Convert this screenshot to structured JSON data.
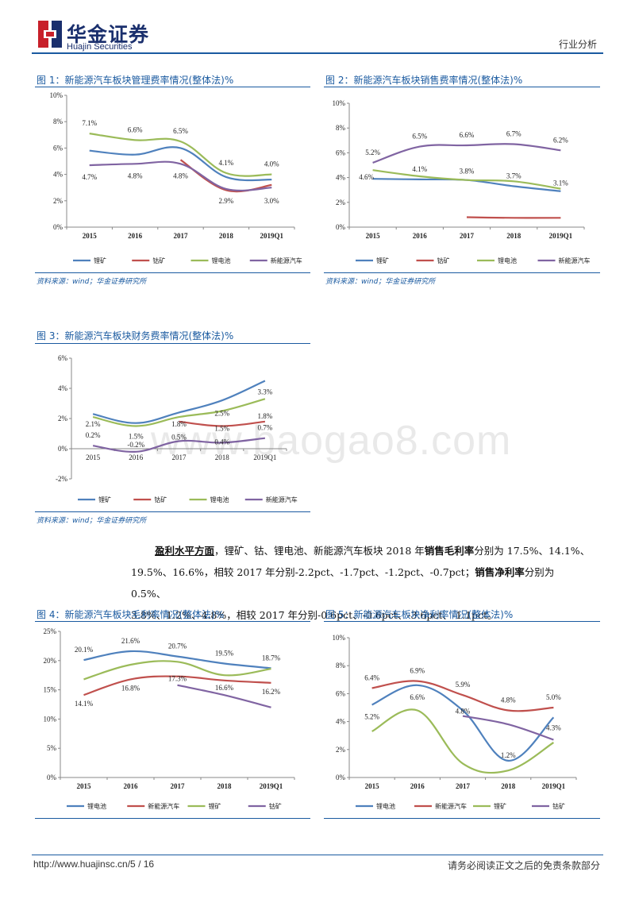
{
  "header": {
    "brand_cn": "华金证券",
    "brand_en": "Huajin Securities",
    "section": "行业分析"
  },
  "watermark": "www.baogao8.com",
  "figures": [
    {
      "title": "图 1：新能源汽车板块管理费率情况(整体法)%",
      "source": "资料来源：wind；华金证券研究所"
    },
    {
      "title": "图 2：新能源汽车板块销售费率情况(整体法)%",
      "source": "资料来源：wind；华金证券研究所"
    },
    {
      "title": "图 3：新能源汽车板块财务费率情况(整体法)%",
      "source": "资料来源：wind；华金证券研究所"
    },
    {
      "title": "图 4：新能源汽车板块毛利率情况(整体法)%",
      "source": ""
    },
    {
      "title": "图 5：新能源汽车板块净利率情况(整体法)%",
      "source": ""
    }
  ],
  "paragraph": {
    "lead": "盈利水平方面",
    "p1": "，锂矿、钴、锂电池、新能源汽车板块 2018 年",
    "k1": "销售毛利率",
    "p2": "分别为 17.5%、14.1%、",
    "p3": "19.5%、16.6%，相较 2017 年分别-2.2pct、-1.7pct、-1.2pct、-0.7pct；",
    "k2": "销售净利率",
    "p4": "分别为 0.5%、",
    "p5": "3.8%、1.2%、4.8%，相较 2017 年分别-0.6pct、-0.6pct、-3.6pct、-1.1pct。"
  },
  "footer": {
    "url": "http://www.huajinsc.cn/5 / 16",
    "disclaimer": "请务必阅读正文之后的免责条款部分"
  },
  "colors": {
    "blue": "#4f81bd",
    "red": "#c0504d",
    "green": "#9bbb59",
    "purple": "#8064a2"
  },
  "chart_data": [
    {
      "type": "line",
      "categories": [
        "2015",
        "2016",
        "2017",
        "2018",
        "2019Q1"
      ],
      "y_ticks": [
        "0%",
        "2%",
        "4%",
        "6%",
        "8%",
        "10%"
      ],
      "ylim": [
        0,
        10
      ],
      "legend_position": "bottom",
      "series": [
        {
          "name": "锂矿",
          "color": "#4f81bd",
          "values": [
            5.8,
            5.5,
            6.0,
            3.8,
            3.6
          ]
        },
        {
          "name": "钴矿",
          "color": "#c0504d",
          "values": [
            null,
            null,
            5.1,
            2.8,
            3.2
          ]
        },
        {
          "name": "锂电池",
          "color": "#9bbb59",
          "values": [
            7.1,
            6.6,
            6.5,
            4.1,
            4.0
          ]
        },
        {
          "name": "新能源汽车",
          "color": "#8064a2",
          "values": [
            4.7,
            4.8,
            4.8,
            2.9,
            3.0
          ]
        }
      ],
      "labels": [
        {
          "text": "7.1%",
          "cat": 0,
          "v": 7.1,
          "dy": -10
        },
        {
          "text": "6.6%",
          "cat": 1,
          "v": 6.6,
          "dy": -10
        },
        {
          "text": "6.5%",
          "cat": 2,
          "v": 6.5,
          "dy": -10
        },
        {
          "text": "4.1%",
          "cat": 3,
          "v": 4.1,
          "dy": -10
        },
        {
          "text": "4.0%",
          "cat": 4,
          "v": 4.0,
          "dy": -10
        },
        {
          "text": "4.7%",
          "cat": 0,
          "v": 4.7,
          "dy": 18
        },
        {
          "text": "4.8%",
          "cat": 1,
          "v": 4.8,
          "dy": 18
        },
        {
          "text": "4.8%",
          "cat": 2,
          "v": 4.8,
          "dy": 18
        },
        {
          "text": "2.9%",
          "cat": 3,
          "v": 2.9,
          "dy": 18
        },
        {
          "text": "3.0%",
          "cat": 4,
          "v": 3.0,
          "dy": 20
        }
      ]
    },
    {
      "type": "line",
      "categories": [
        "2015",
        "2016",
        "2017",
        "2018",
        "2019Q1"
      ],
      "y_ticks": [
        "0%",
        "2%",
        "4%",
        "6%",
        "8%",
        "10%"
      ],
      "ylim": [
        0,
        10
      ],
      "legend_position": "bottom",
      "series": [
        {
          "name": "锂矿",
          "color": "#4f81bd",
          "values": [
            3.9,
            3.85,
            3.8,
            3.3,
            2.9
          ]
        },
        {
          "name": "钴矿",
          "color": "#c0504d",
          "values": [
            null,
            null,
            0.8,
            0.75,
            0.75
          ]
        },
        {
          "name": "锂电池",
          "color": "#9bbb59",
          "values": [
            4.6,
            4.1,
            3.8,
            3.7,
            3.1
          ]
        },
        {
          "name": "新能源汽车",
          "color": "#8064a2",
          "values": [
            5.2,
            6.5,
            6.6,
            6.7,
            6.2
          ]
        }
      ],
      "labels": [
        {
          "text": "5.2%",
          "cat": 0,
          "v": 5.2,
          "dy": -10
        },
        {
          "text": "6.5%",
          "cat": 1,
          "v": 6.5,
          "dy": -10
        },
        {
          "text": "6.6%",
          "cat": 2,
          "v": 6.6,
          "dy": -10
        },
        {
          "text": "6.7%",
          "cat": 3,
          "v": 6.7,
          "dy": -10
        },
        {
          "text": "6.2%",
          "cat": 4,
          "v": 6.2,
          "dy": -10
        },
        {
          "text": "4.6%",
          "cat": 0,
          "v": 4.6,
          "dy": 12,
          "dx": -8
        },
        {
          "text": "4.1%",
          "cat": 1,
          "v": 4.1,
          "dy": -6
        },
        {
          "text": "3.8%",
          "cat": 2,
          "v": 3.8,
          "dy": -8
        },
        {
          "text": "3.7%",
          "cat": 3,
          "v": 3.7,
          "dy": -4
        },
        {
          "text": "3.1%",
          "cat": 4,
          "v": 3.1,
          "dy": -4
        }
      ]
    },
    {
      "type": "line",
      "categories": [
        "2015",
        "2016",
        "2017",
        "2018",
        "2019Q1"
      ],
      "y_ticks": [
        "-2%",
        "0%",
        "2%",
        "4%",
        "6%"
      ],
      "ylim": [
        -2,
        6
      ],
      "legend_position": "bottom",
      "series": [
        {
          "name": "锂矿",
          "color": "#4f81bd",
          "values": [
            2.3,
            1.7,
            2.4,
            3.2,
            4.5
          ]
        },
        {
          "name": "钴矿",
          "color": "#c0504d",
          "values": [
            null,
            null,
            1.8,
            1.5,
            1.8
          ]
        },
        {
          "name": "锂电池",
          "color": "#9bbb59",
          "values": [
            2.1,
            1.5,
            2.1,
            2.5,
            3.3
          ]
        },
        {
          "name": "新能源汽车",
          "color": "#8064a2",
          "values": [
            0.2,
            -0.2,
            0.5,
            0.4,
            0.7
          ]
        }
      ],
      "labels": [
        {
          "text": "2.1%",
          "cat": 0,
          "v": 2.1,
          "dy": 12
        },
        {
          "text": "1.5%",
          "cat": 1,
          "v": 1.5,
          "dy": 16
        },
        {
          "text": "1.8%",
          "cat": 2,
          "v": 1.8,
          "dy": 6
        },
        {
          "text": "2.5%",
          "cat": 3,
          "v": 2.5,
          "dy": 6
        },
        {
          "text": "3.3%",
          "cat": 4,
          "v": 3.3,
          "dy": -6
        },
        {
          "text": "1.5%",
          "cat": 3,
          "v": 1.5,
          "dy": 6
        },
        {
          "text": "1.8%",
          "cat": 4,
          "v": 1.8,
          "dy": -4
        },
        {
          "text": "0.2%",
          "cat": 0,
          "v": 0.2,
          "dy": -10
        },
        {
          "text": "-0.2%",
          "cat": 1,
          "v": -0.2,
          "dy": -6
        },
        {
          "text": "0.5%",
          "cat": 2,
          "v": 0.5,
          "dy": -2
        },
        {
          "text": "0.4%",
          "cat": 3,
          "v": 0.4,
          "dy": 2
        },
        {
          "text": "0.7%",
          "cat": 4,
          "v": 0.7,
          "dy": -10
        }
      ]
    },
    {
      "type": "line",
      "categories": [
        "2015",
        "2016",
        "2017",
        "2018",
        "2019Q1"
      ],
      "y_ticks": [
        "0%",
        "5%",
        "10%",
        "15%",
        "20%",
        "25%"
      ],
      "ylim": [
        0,
        25
      ],
      "legend_position": "bottom",
      "series": [
        {
          "name": "锂电池",
          "color": "#4f81bd",
          "values": [
            20.1,
            21.6,
            20.7,
            19.5,
            18.7
          ]
        },
        {
          "name": "新能源汽车",
          "color": "#c0504d",
          "values": [
            14.1,
            16.8,
            17.3,
            16.6,
            16.2
          ]
        },
        {
          "name": "锂矿",
          "color": "#9bbb59",
          "values": [
            16.8,
            19.3,
            19.8,
            17.5,
            18.6
          ]
        },
        {
          "name": "钴矿",
          "color": "#8064a2",
          "values": [
            null,
            null,
            15.8,
            14.1,
            12.0
          ]
        }
      ],
      "labels": [
        {
          "text": "20.1%",
          "cat": 0,
          "v": 20.1,
          "dy": -10
        },
        {
          "text": "21.6%",
          "cat": 1,
          "v": 21.6,
          "dy": -10
        },
        {
          "text": "20.7%",
          "cat": 2,
          "v": 20.7,
          "dy": -10
        },
        {
          "text": "19.5%",
          "cat": 3,
          "v": 19.5,
          "dy": -10
        },
        {
          "text": "18.7%",
          "cat": 4,
          "v": 18.7,
          "dy": -10
        },
        {
          "text": "14.1%",
          "cat": 0,
          "v": 14.1,
          "dy": 14
        },
        {
          "text": "16.8%",
          "cat": 1,
          "v": 16.8,
          "dy": 14
        },
        {
          "text": "17.3%",
          "cat": 2,
          "v": 17.3,
          "dy": 6
        },
        {
          "text": "16.6%",
          "cat": 3,
          "v": 16.6,
          "dy": 12
        },
        {
          "text": "16.2%",
          "cat": 4,
          "v": 16.2,
          "dy": 14
        }
      ]
    },
    {
      "type": "line",
      "categories": [
        "2015",
        "2016",
        "2017",
        "2018",
        "2019Q1"
      ],
      "y_ticks": [
        "0%",
        "2%",
        "4%",
        "6%",
        "8%",
        "10%"
      ],
      "ylim": [
        0,
        10
      ],
      "legend_position": "bottom",
      "series": [
        {
          "name": "锂电池",
          "color": "#4f81bd",
          "values": [
            5.2,
            6.6,
            4.8,
            1.2,
            4.3
          ]
        },
        {
          "name": "新能源汽车",
          "color": "#c0504d",
          "values": [
            6.4,
            6.9,
            5.9,
            4.8,
            5.0
          ]
        },
        {
          "name": "锂矿",
          "color": "#9bbb59",
          "values": [
            3.3,
            4.8,
            1.0,
            0.5,
            2.5
          ]
        },
        {
          "name": "钴矿",
          "color": "#8064a2",
          "values": [
            null,
            null,
            4.4,
            3.8,
            2.7
          ]
        }
      ],
      "labels": [
        {
          "text": "6.4%",
          "cat": 0,
          "v": 6.4,
          "dy": -10
        },
        {
          "text": "6.9%",
          "cat": 1,
          "v": 6.9,
          "dy": -10
        },
        {
          "text": "5.9%",
          "cat": 2,
          "v": 5.9,
          "dy": -10
        },
        {
          "text": "4.8%",
          "cat": 3,
          "v": 4.8,
          "dy": -10
        },
        {
          "text": "5.0%",
          "cat": 4,
          "v": 5.0,
          "dy": -10
        },
        {
          "text": "5.2%",
          "cat": 0,
          "v": 5.2,
          "dy": 18
        },
        {
          "text": "6.6%",
          "cat": 1,
          "v": 6.6,
          "dy": 18
        },
        {
          "text": "4.8%",
          "cat": 2,
          "v": 4.8,
          "dy": 4
        },
        {
          "text": "1.2%",
          "cat": 3,
          "v": 1.2,
          "dy": -4
        },
        {
          "text": "4.3%",
          "cat": 4,
          "v": 4.3,
          "dy": 16
        }
      ]
    }
  ]
}
